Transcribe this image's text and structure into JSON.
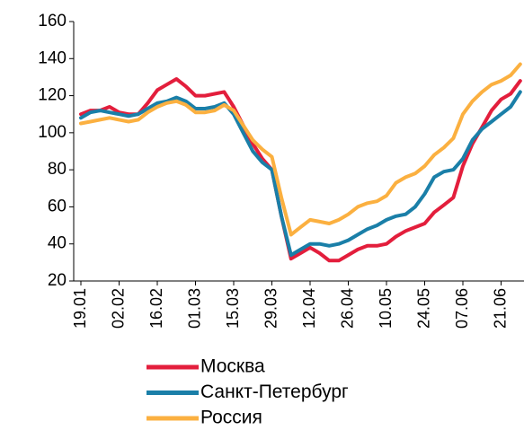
{
  "chart_data": {
    "type": "line",
    "categories": [
      "19.01",
      null,
      null,
      null,
      "02.02",
      null,
      null,
      null,
      "16.02",
      null,
      null,
      null,
      "01.03",
      null,
      null,
      null,
      "15.03",
      null,
      null,
      null,
      "29.03",
      null,
      null,
      null,
      "12.04",
      null,
      null,
      null,
      "26.04",
      null,
      null,
      null,
      "10.05",
      null,
      null,
      null,
      "24.05",
      null,
      null,
      null,
      "07.06",
      null,
      null,
      null,
      "21.06",
      null,
      null
    ],
    "series": [
      {
        "name": "Москва",
        "color": "#e31e3c",
        "values": [
          110,
          112,
          112,
          114,
          111,
          110,
          110,
          116,
          123,
          126,
          129,
          125,
          120,
          120,
          121,
          122,
          114,
          104,
          94,
          86,
          80,
          55,
          32,
          35,
          38,
          35,
          31,
          31,
          34,
          37,
          39,
          39,
          40,
          44,
          47,
          49,
          51,
          57,
          61,
          65,
          82,
          94,
          103,
          112,
          118,
          121,
          128
        ]
      },
      {
        "name": "Санкт-Петербург",
        "color": "#1a7fa8",
        "values": [
          108,
          111,
          112,
          111,
          110,
          109,
          110,
          113,
          116,
          117,
          119,
          117,
          113,
          113,
          114,
          116,
          110,
          100,
          90,
          84,
          80,
          55,
          34,
          37,
          40,
          40,
          39,
          40,
          42,
          45,
          48,
          50,
          53,
          55,
          56,
          60,
          67,
          76,
          79,
          80,
          86,
          96,
          102,
          106,
          110,
          114,
          122
        ]
      },
      {
        "name": "Россия",
        "color": "#fbb040",
        "values": [
          105,
          106,
          107,
          108,
          107,
          106,
          107,
          111,
          114,
          116,
          117,
          115,
          111,
          111,
          112,
          115,
          112,
          104,
          96,
          91,
          87,
          65,
          45,
          49,
          53,
          52,
          51,
          53,
          56,
          60,
          62,
          63,
          66,
          73,
          76,
          78,
          82,
          88,
          92,
          97,
          110,
          117,
          122,
          126,
          128,
          131,
          137
        ]
      }
    ],
    "ylim": [
      20,
      160
    ],
    "yticks": [
      20,
      40,
      60,
      80,
      100,
      120,
      140,
      160
    ],
    "grid": false,
    "legend": "bottom"
  }
}
